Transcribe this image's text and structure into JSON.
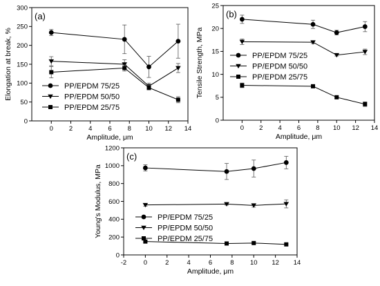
{
  "chart_data": [
    {
      "type": "line",
      "panel_label": "(a)",
      "xlabel": "Amplitude, μm",
      "ylabel": "Elongation at break, %",
      "xlim": [
        -2,
        14
      ],
      "ylim": [
        0,
        300
      ],
      "xticks": [
        0,
        2,
        4,
        6,
        8,
        10,
        12,
        14
      ],
      "yticks": [
        0,
        50,
        100,
        150,
        200,
        250,
        300
      ],
      "grid": false,
      "legend_position": "bottom-left",
      "x": [
        0,
        7.5,
        10,
        13
      ],
      "series": [
        {
          "name": "PP/EPDM 75/25",
          "marker": "circle",
          "values": [
            234,
            216,
            143,
            211
          ],
          "errors": [
            8,
            38,
            28,
            45
          ]
        },
        {
          "name": "PP/EPDM 50/50",
          "marker": "triangle-down",
          "values": [
            158,
            150,
            92,
            140
          ],
          "errors": [
            12,
            12,
            8,
            12
          ]
        },
        {
          "name": "PP/EPDM 25/75",
          "marker": "square",
          "values": [
            129,
            140,
            88,
            56
          ],
          "errors": [
            15,
            8,
            6,
            8
          ]
        }
      ]
    },
    {
      "type": "line",
      "panel_label": "(b)",
      "xlabel": "Amplitude, μm",
      "ylabel": "Tensile Strength, MPa",
      "xlim": [
        -2,
        14
      ],
      "ylim": [
        0,
        25
      ],
      "xticks": [
        0,
        2,
        4,
        6,
        8,
        10,
        12,
        14
      ],
      "yticks": [
        0,
        5,
        10,
        15,
        20,
        25
      ],
      "grid": false,
      "legend_position": "center",
      "x": [
        0,
        7.5,
        10,
        13
      ],
      "series": [
        {
          "name": "PP/EPDM 75/25",
          "marker": "circle",
          "values": [
            22,
            20.9,
            19.1,
            20.4
          ],
          "errors": [
            0.9,
            0.9,
            0.5,
            1.1
          ]
        },
        {
          "name": "PP/EPDM 50/50",
          "marker": "triangle-down",
          "values": [
            17.1,
            17.0,
            14.2,
            14.9
          ],
          "errors": [
            0.6,
            0.3,
            0.2,
            0.6
          ]
        },
        {
          "name": "PP/EPDM 25/75",
          "marker": "square",
          "values": [
            7.6,
            7.4,
            5.0,
            3.5
          ],
          "errors": [
            0.5,
            0.2,
            0.2,
            0.5
          ]
        }
      ]
    },
    {
      "type": "line",
      "panel_label": "(c)",
      "xlabel": "Amplitude, μm",
      "ylabel": "Young's Modulus, MPa",
      "xlim": [
        -2,
        14
      ],
      "ylim": [
        0,
        1200
      ],
      "xticks": [
        -2,
        0,
        2,
        4,
        6,
        8,
        10,
        12,
        14
      ],
      "yticks": [
        0,
        200,
        400,
        600,
        800,
        1000,
        1200
      ],
      "grid": false,
      "legend_position": "center",
      "x": [
        0,
        7.5,
        10,
        13
      ],
      "series": [
        {
          "name": "PP/EPDM 75/25",
          "marker": "circle",
          "values": [
            975,
            935,
            968,
            1035
          ],
          "errors": [
            35,
            90,
            95,
            70
          ]
        },
        {
          "name": "PP/EPDM 50/50",
          "marker": "triangle-down",
          "values": [
            560,
            570,
            555,
            572
          ],
          "errors": [
            15,
            12,
            20,
            45
          ]
        },
        {
          "name": "PP/EPDM 25/75",
          "marker": "square",
          "values": [
            150,
            128,
            133,
            118
          ],
          "errors": [
            8,
            8,
            8,
            8
          ]
        }
      ]
    }
  ]
}
